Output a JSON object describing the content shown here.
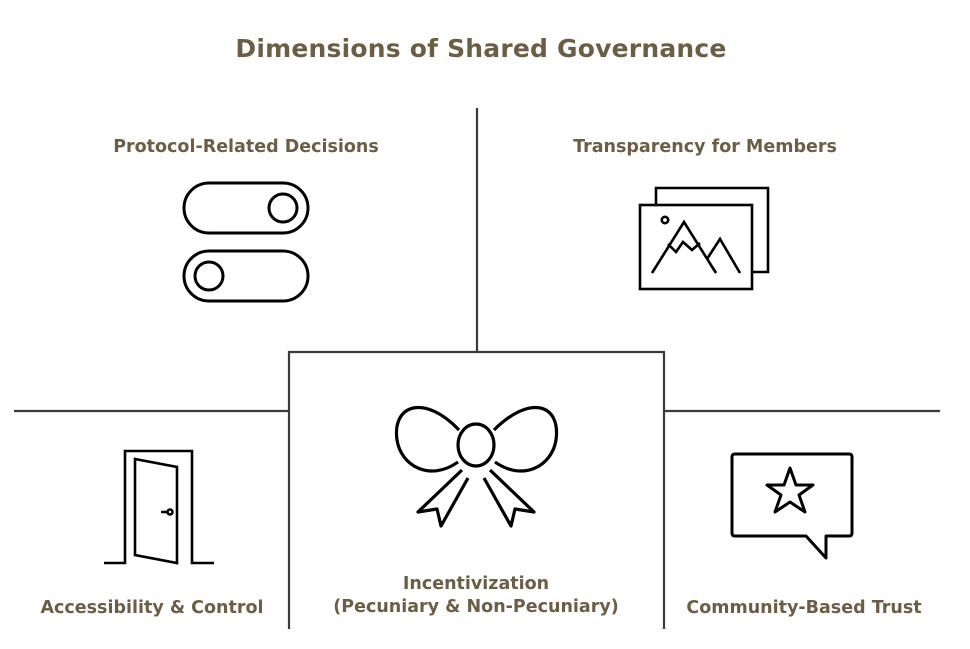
{
  "colors": {
    "text": "#6b5e45",
    "line": "#3a3a3a",
    "icon": "#000000",
    "background": "#ffffff"
  },
  "title": "Dimensions of Shared Governance",
  "sections": {
    "top_left": {
      "label": "Protocol-Related Decisions",
      "icon": "toggle-switches-icon"
    },
    "top_right": {
      "label": "Transparency for Members",
      "icon": "image-gallery-icon"
    },
    "bottom_left": {
      "label": "Accessibility & Control",
      "icon": "open-door-icon"
    },
    "center": {
      "label_line1": "Incentivization",
      "label_line2": "(Pecuniary & Non-Pecuniary)",
      "icon": "bow-ribbon-icon"
    },
    "bottom_right": {
      "label": "Community-Based Trust",
      "icon": "star-speech-bubble-icon"
    }
  }
}
